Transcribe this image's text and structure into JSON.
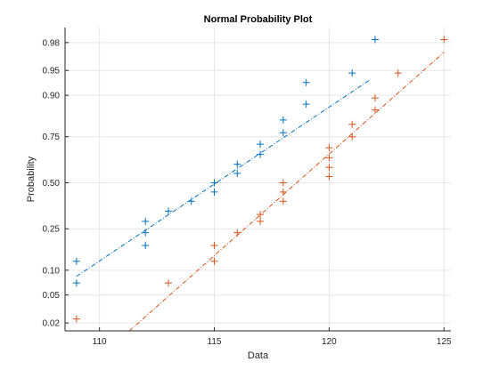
{
  "chart_data": {
    "type": "scatter",
    "title": "Normal Probability Plot",
    "xlabel": "Data",
    "ylabel": "Probability",
    "xlim": [
      108.5,
      125.3
    ],
    "x_ticks": [
      110,
      115,
      120,
      125
    ],
    "y_ticks": [
      0.02,
      0.05,
      0.1,
      0.25,
      0.5,
      0.75,
      0.9,
      0.95,
      0.98
    ],
    "y_tick_labels": [
      "0.02",
      "0.05",
      "0.10",
      "0.25",
      "0.50",
      "0.75",
      "0.90",
      "0.95",
      "0.98"
    ],
    "y_scale": "normal-probability",
    "grid": true,
    "marker": "+",
    "series": [
      {
        "color": "#0072BD",
        "points": [
          [
            109,
            0.071
          ],
          [
            109,
            0.125
          ],
          [
            112,
            0.179
          ],
          [
            112,
            0.232
          ],
          [
            112,
            0.286
          ],
          [
            113,
            0.339
          ],
          [
            114,
            0.393
          ],
          [
            115,
            0.446
          ],
          [
            115,
            0.5
          ],
          [
            116,
            0.554
          ],
          [
            116,
            0.607
          ],
          [
            117,
            0.661
          ],
          [
            117,
            0.714
          ],
          [
            118,
            0.768
          ],
          [
            118,
            0.821
          ],
          [
            119,
            0.875
          ],
          [
            119,
            0.929
          ],
          [
            121,
            0.946
          ],
          [
            122,
            0.982
          ]
        ],
        "fit_line": {
          "x": [
            109,
            121.8
          ],
          "p": [
            0.085,
            0.935
          ]
        }
      },
      {
        "color": "#D95319",
        "points": [
          [
            109,
            0.023
          ],
          [
            113,
            0.071
          ],
          [
            115,
            0.125
          ],
          [
            115,
            0.179
          ],
          [
            116,
            0.232
          ],
          [
            117,
            0.286
          ],
          [
            117,
            0.321
          ],
          [
            118,
            0.393
          ],
          [
            118,
            0.446
          ],
          [
            118,
            0.5
          ],
          [
            120,
            0.536
          ],
          [
            120,
            0.589
          ],
          [
            120,
            0.643
          ],
          [
            120,
            0.696
          ],
          [
            121,
            0.75
          ],
          [
            121,
            0.804
          ],
          [
            122,
            0.857
          ],
          [
            122,
            0.893
          ],
          [
            123,
            0.946
          ],
          [
            125,
            0.982
          ]
        ],
        "fit_line": {
          "x": [
            111.3,
            125
          ],
          "p": [
            0.015,
            0.972
          ]
        }
      }
    ]
  }
}
